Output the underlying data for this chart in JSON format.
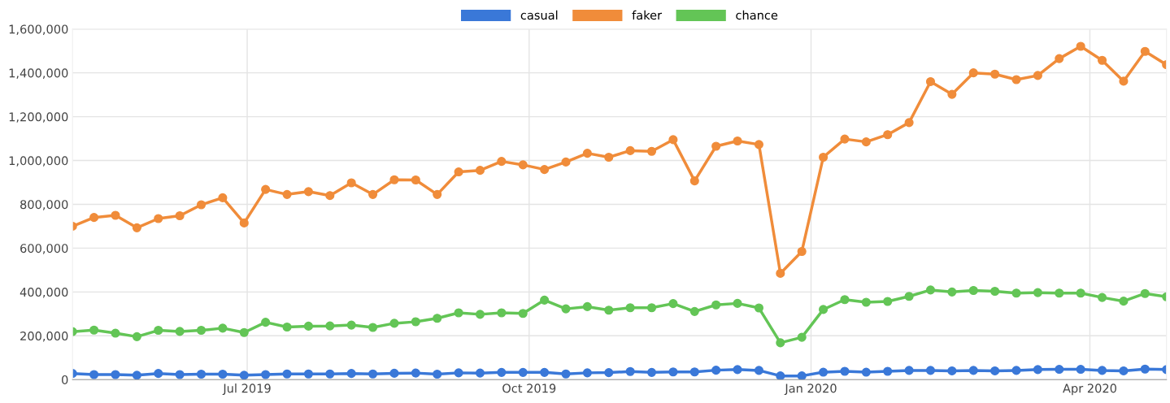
{
  "chart_data": {
    "type": "line",
    "x": [
      "2019-05-05",
      "2019-05-12",
      "2019-05-19",
      "2019-05-26",
      "2019-06-02",
      "2019-06-09",
      "2019-06-16",
      "2019-06-23",
      "2019-06-30",
      "2019-07-07",
      "2019-07-14",
      "2019-07-21",
      "2019-07-28",
      "2019-08-04",
      "2019-08-11",
      "2019-08-18",
      "2019-08-25",
      "2019-09-01",
      "2019-09-08",
      "2019-09-15",
      "2019-09-22",
      "2019-09-29",
      "2019-10-06",
      "2019-10-13",
      "2019-10-20",
      "2019-10-27",
      "2019-11-03",
      "2019-11-10",
      "2019-11-17",
      "2019-11-24",
      "2019-12-01",
      "2019-12-08",
      "2019-12-15",
      "2019-12-22",
      "2019-12-29",
      "2020-01-05",
      "2020-01-12",
      "2020-01-19",
      "2020-01-26",
      "2020-02-02",
      "2020-02-09",
      "2020-02-16",
      "2020-02-23",
      "2020-03-01",
      "2020-03-08",
      "2020-03-15",
      "2020-03-22",
      "2020-03-29",
      "2020-04-05",
      "2020-04-12",
      "2020-04-19",
      "2020-04-26"
    ],
    "series": [
      {
        "name": "casual",
        "color": "#3a78d8",
        "values": [
          28000,
          23000,
          23000,
          20000,
          28000,
          23000,
          25000,
          25000,
          20000,
          23000,
          26000,
          26000,
          26000,
          28000,
          26000,
          29000,
          30000,
          25000,
          31000,
          30000,
          33000,
          33000,
          33000,
          26000,
          31000,
          32000,
          37000,
          33000,
          35000,
          35000,
          43000,
          46000,
          42000,
          17000,
          17000,
          34000,
          38000,
          34000,
          38000,
          42000,
          42000,
          40000,
          42000,
          40000,
          42000,
          46000,
          47000,
          47000,
          42000,
          40000,
          48000,
          46000
        ]
      },
      {
        "name": "faker",
        "color": "#f08c3a",
        "values": [
          700000,
          740000,
          750000,
          693000,
          735000,
          748000,
          798000,
          830000,
          715000,
          868000,
          845000,
          858000,
          840000,
          898000,
          845000,
          912000,
          911000,
          845000,
          948000,
          955000,
          996000,
          980000,
          959000,
          993000,
          1033000,
          1015000,
          1045000,
          1042000,
          1095000,
          907000,
          1065000,
          1089000,
          1073000,
          485000,
          585000,
          1015000,
          1098000,
          1085000,
          1118000,
          1173000,
          1360000,
          1302000,
          1400000,
          1394000,
          1369000,
          1388000,
          1465000,
          1521000,
          1457000,
          1362000,
          1498000,
          1437000
        ]
      },
      {
        "name": "chance",
        "color": "#63c556",
        "values": [
          219000,
          226000,
          212000,
          196000,
          225000,
          220000,
          225000,
          235000,
          215000,
          262000,
          240000,
          244000,
          245000,
          249000,
          238000,
          257000,
          264000,
          280000,
          305000,
          298000,
          305000,
          302000,
          363000,
          323000,
          333000,
          317000,
          328000,
          328000,
          347000,
          311000,
          341000,
          348000,
          327000,
          168000,
          193000,
          320000,
          365000,
          353000,
          357000,
          380000,
          409000,
          400000,
          407000,
          403000,
          395000,
          397000,
          395000,
          395000,
          375000,
          358000,
          393000,
          378000
        ]
      }
    ],
    "xlim": [
      "2019-05-05",
      "2020-04-26"
    ],
    "xticks": [
      {
        "value": "2019-07-01",
        "label": "Jul 2019"
      },
      {
        "value": "2019-10-01",
        "label": "Oct 2019"
      },
      {
        "value": "2020-01-01",
        "label": "Jan 2020"
      },
      {
        "value": "2020-04-01",
        "label": "Apr 2020"
      }
    ],
    "ylim": [
      0,
      1600000
    ],
    "yticks": [
      {
        "value": 0,
        "label": "0"
      },
      {
        "value": 200000,
        "label": "200,000"
      },
      {
        "value": 400000,
        "label": "400,000"
      },
      {
        "value": 600000,
        "label": "600,000"
      },
      {
        "value": 800000,
        "label": "800,000"
      },
      {
        "value": 1000000,
        "label": "1,000,000"
      },
      {
        "value": 1200000,
        "label": "1,200,000"
      },
      {
        "value": 1400000,
        "label": "1,400,000"
      },
      {
        "value": 1600000,
        "label": "1,600,000"
      }
    ],
    "grid": true,
    "legend": "top",
    "marker": "circle",
    "line_style": "solid"
  }
}
